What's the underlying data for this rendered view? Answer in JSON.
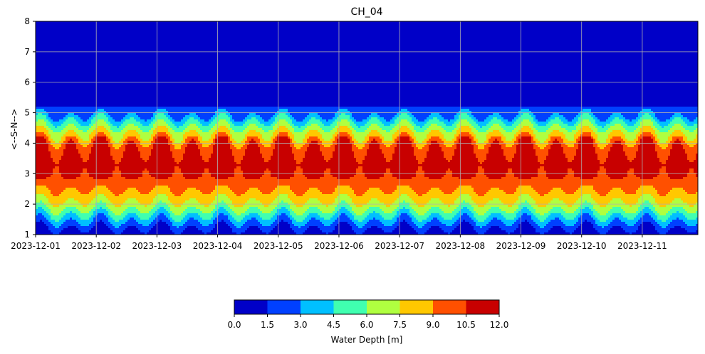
{
  "chart_data": {
    "type": "heatmap",
    "title": "CH_04",
    "xlabel": "",
    "ylabel": "<--S-N-->",
    "ylim": [
      1,
      8
    ],
    "yticks": [
      "1",
      "2",
      "3",
      "4",
      "5",
      "6",
      "7",
      "8"
    ],
    "xlim": [
      "2023-12-01",
      "2023-12-11T22:00"
    ],
    "xticks": [
      "2023-12-01",
      "2023-12-02",
      "2023-12-03",
      "2023-12-04",
      "2023-12-05",
      "2023-12-06",
      "2023-12-07",
      "2023-12-08",
      "2023-12-09",
      "2023-12-10",
      "2023-12-11"
    ],
    "grid": true,
    "colorbar": {
      "label": "Water Depth [m]",
      "ticks": [
        "0.0",
        "1.5",
        "3.0",
        "4.5",
        "6.0",
        "7.5",
        "9.0",
        "10.5",
        "12.0"
      ],
      "levels": [
        0,
        1.5,
        3,
        4.5,
        6,
        7.5,
        9,
        10.5,
        12
      ],
      "colors": [
        "#0000c8",
        "#0040ff",
        "#00c0ff",
        "#40ffb0",
        "#b0ff40",
        "#ffc800",
        "#ff5000",
        "#c80000"
      ],
      "placement": "bottom"
    },
    "depth_profile": {
      "y": [
        1.0,
        1.3,
        1.5,
        1.7,
        1.9,
        2.2,
        2.6,
        3.0,
        3.5,
        4.0,
        4.2,
        4.4,
        4.6,
        4.8,
        5.0,
        8.0
      ],
      "depth": [
        0.5,
        2.0,
        3.5,
        5.0,
        6.5,
        8.0,
        9.5,
        11.0,
        11.5,
        10.0,
        8.5,
        7.0,
        5.5,
        4.0,
        2.0,
        0.5
      ]
    },
    "daily_cycles": 2
  }
}
